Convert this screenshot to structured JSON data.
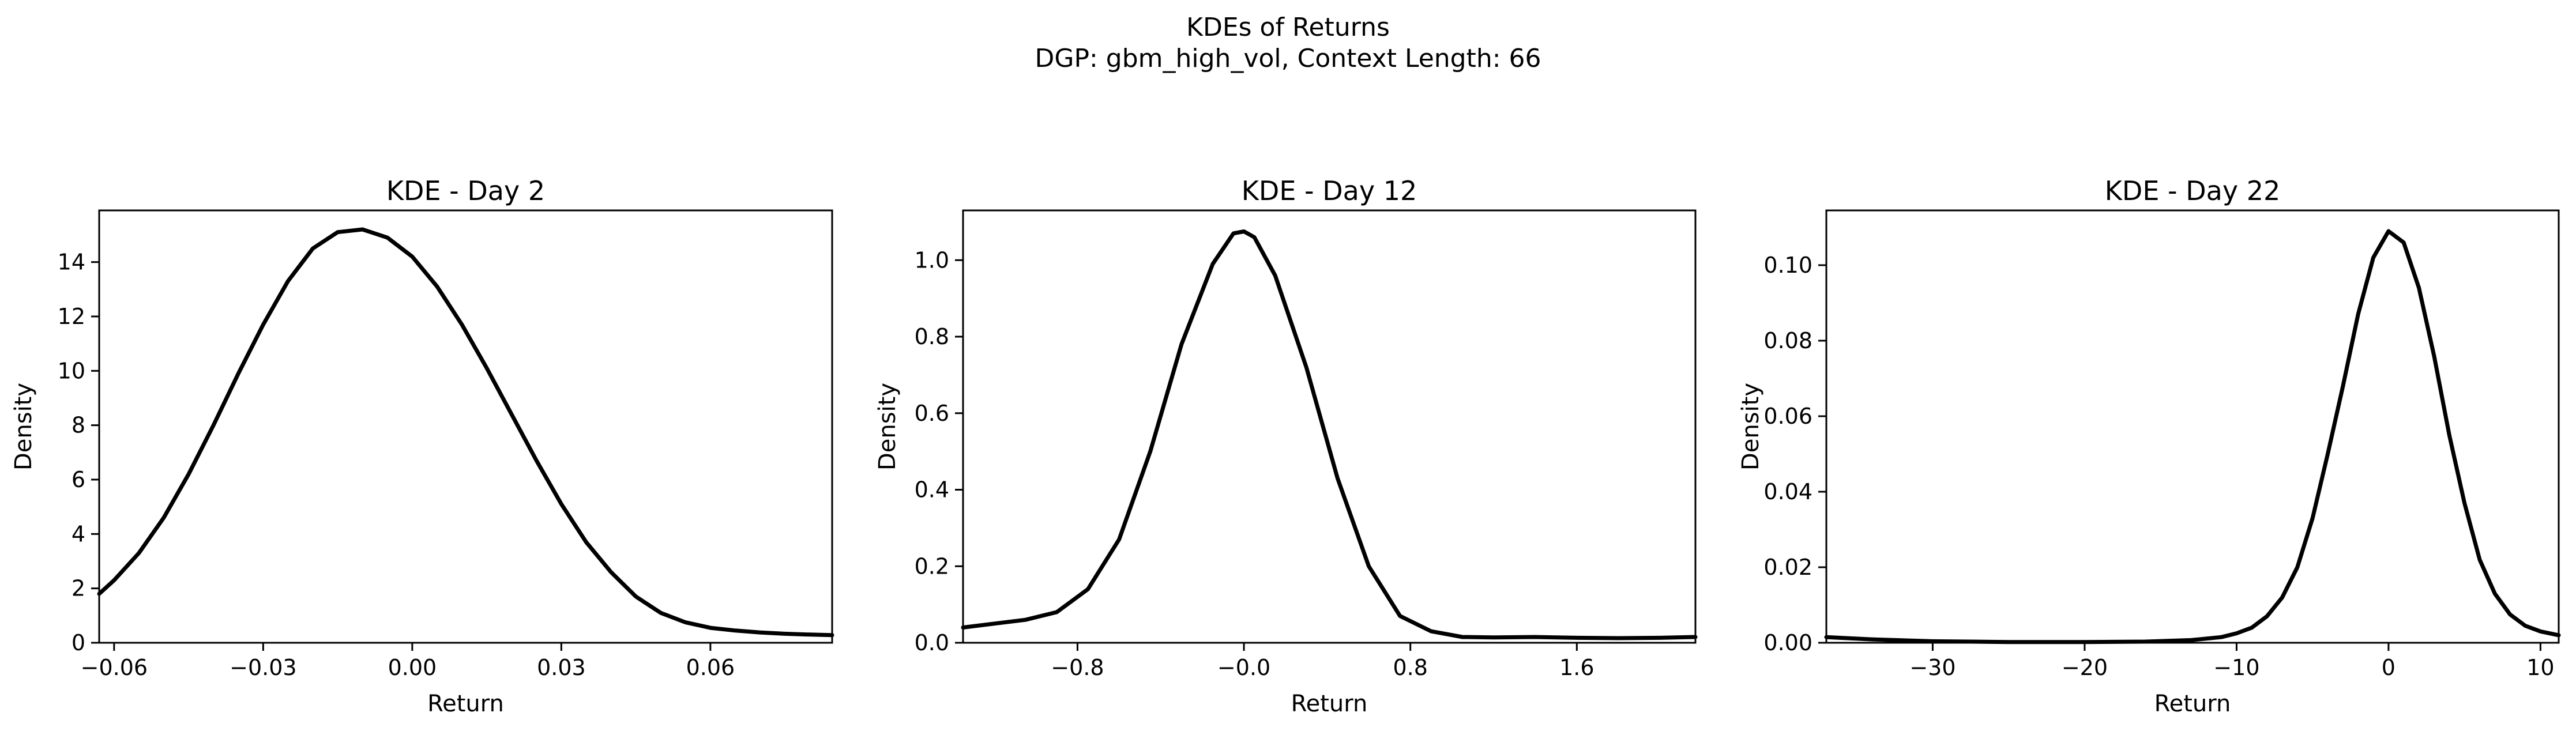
{
  "figure": {
    "title": "KDEs of Returns",
    "subtitle": "DGP: gbm_high_vol, Context Length: 66"
  },
  "chart_data": [
    {
      "type": "line",
      "title": "KDE - Day 2",
      "xlabel": "Return",
      "ylabel": "Density",
      "xlim": [
        -0.063,
        0.0845
      ],
      "ylim": [
        0,
        15.9
      ],
      "xticks": [
        -0.06,
        -0.03,
        0.0,
        0.03,
        0.06
      ],
      "xtick_labels": [
        "−0.06",
        "−0.03",
        "0.00",
        "0.03",
        "0.06"
      ],
      "yticks": [
        0,
        2,
        4,
        6,
        8,
        10,
        12,
        14
      ],
      "ytick_labels": [
        "0",
        "2",
        "4",
        "6",
        "8",
        "10",
        "12",
        "14"
      ],
      "grid": false,
      "series": [
        {
          "color": "#000000",
          "x": [
            -0.063,
            -0.06,
            -0.055,
            -0.05,
            -0.045,
            -0.04,
            -0.035,
            -0.03,
            -0.025,
            -0.02,
            -0.015,
            -0.01,
            -0.005,
            0.0,
            0.005,
            0.01,
            0.015,
            0.02,
            0.025,
            0.03,
            0.035,
            0.04,
            0.045,
            0.05,
            0.055,
            0.06,
            0.065,
            0.07,
            0.075,
            0.08,
            0.0845
          ],
          "y": [
            1.8,
            2.3,
            3.3,
            4.6,
            6.2,
            8.0,
            9.9,
            11.7,
            13.3,
            14.5,
            15.1,
            15.2,
            14.9,
            14.2,
            13.1,
            11.7,
            10.1,
            8.4,
            6.7,
            5.1,
            3.7,
            2.6,
            1.7,
            1.1,
            0.75,
            0.55,
            0.45,
            0.38,
            0.33,
            0.3,
            0.28
          ]
        }
      ]
    },
    {
      "type": "line",
      "title": "KDE - Day 12",
      "xlabel": "Return",
      "ylabel": "Density",
      "xlim": [
        -1.35,
        2.17
      ],
      "ylim": [
        0,
        1.13
      ],
      "xticks": [
        -0.8,
        0.0,
        0.8,
        1.6
      ],
      "xtick_labels": [
        "−0.8",
        "−0.0",
        "0.8",
        "1.6"
      ],
      "yticks": [
        0.0,
        0.2,
        0.4,
        0.6,
        0.8,
        1.0
      ],
      "ytick_labels": [
        "0.0",
        "0.2",
        "0.4",
        "0.6",
        "0.8",
        "1.0"
      ],
      "grid": false,
      "series": [
        {
          "color": "#000000",
          "x": [
            -1.35,
            -1.2,
            -1.05,
            -0.9,
            -0.75,
            -0.6,
            -0.45,
            -0.3,
            -0.15,
            -0.05,
            0.0,
            0.05,
            0.15,
            0.3,
            0.45,
            0.6,
            0.75,
            0.9,
            1.05,
            1.2,
            1.4,
            1.6,
            1.8,
            2.0,
            2.17
          ],
          "y": [
            0.04,
            0.05,
            0.06,
            0.08,
            0.14,
            0.27,
            0.5,
            0.78,
            0.99,
            1.07,
            1.075,
            1.06,
            0.96,
            0.72,
            0.43,
            0.2,
            0.07,
            0.03,
            0.015,
            0.014,
            0.015,
            0.013,
            0.012,
            0.013,
            0.015
          ]
        }
      ]
    },
    {
      "type": "line",
      "title": "KDE - Day 22",
      "xlabel": "Return",
      "ylabel": "Density",
      "xlim": [
        -37,
        11.2
      ],
      "ylim": [
        0,
        0.1145
      ],
      "xticks": [
        -30,
        -20,
        -10,
        0,
        10
      ],
      "xtick_labels": [
        "−30",
        "−20",
        "−10",
        "0",
        "10"
      ],
      "yticks": [
        0.0,
        0.02,
        0.04,
        0.06,
        0.08,
        0.1
      ],
      "ytick_labels": [
        "0.00",
        "0.02",
        "0.04",
        "0.06",
        "0.08",
        "0.10"
      ],
      "grid": false,
      "series": [
        {
          "color": "#000000",
          "x": [
            -37,
            -34,
            -30,
            -25,
            -20,
            -16,
            -13,
            -11,
            -10,
            -9,
            -8,
            -7,
            -6,
            -5,
            -4,
            -3,
            -2,
            -1,
            0,
            1,
            2,
            3,
            4,
            5,
            6,
            7,
            8,
            9,
            10,
            11.2
          ],
          "y": [
            0.0015,
            0.0009,
            0.0004,
            0.0002,
            0.0002,
            0.0003,
            0.0007,
            0.0015,
            0.0025,
            0.004,
            0.007,
            0.012,
            0.02,
            0.033,
            0.05,
            0.068,
            0.087,
            0.102,
            0.109,
            0.106,
            0.094,
            0.076,
            0.055,
            0.037,
            0.022,
            0.013,
            0.0075,
            0.0045,
            0.003,
            0.002
          ]
        }
      ]
    }
  ]
}
